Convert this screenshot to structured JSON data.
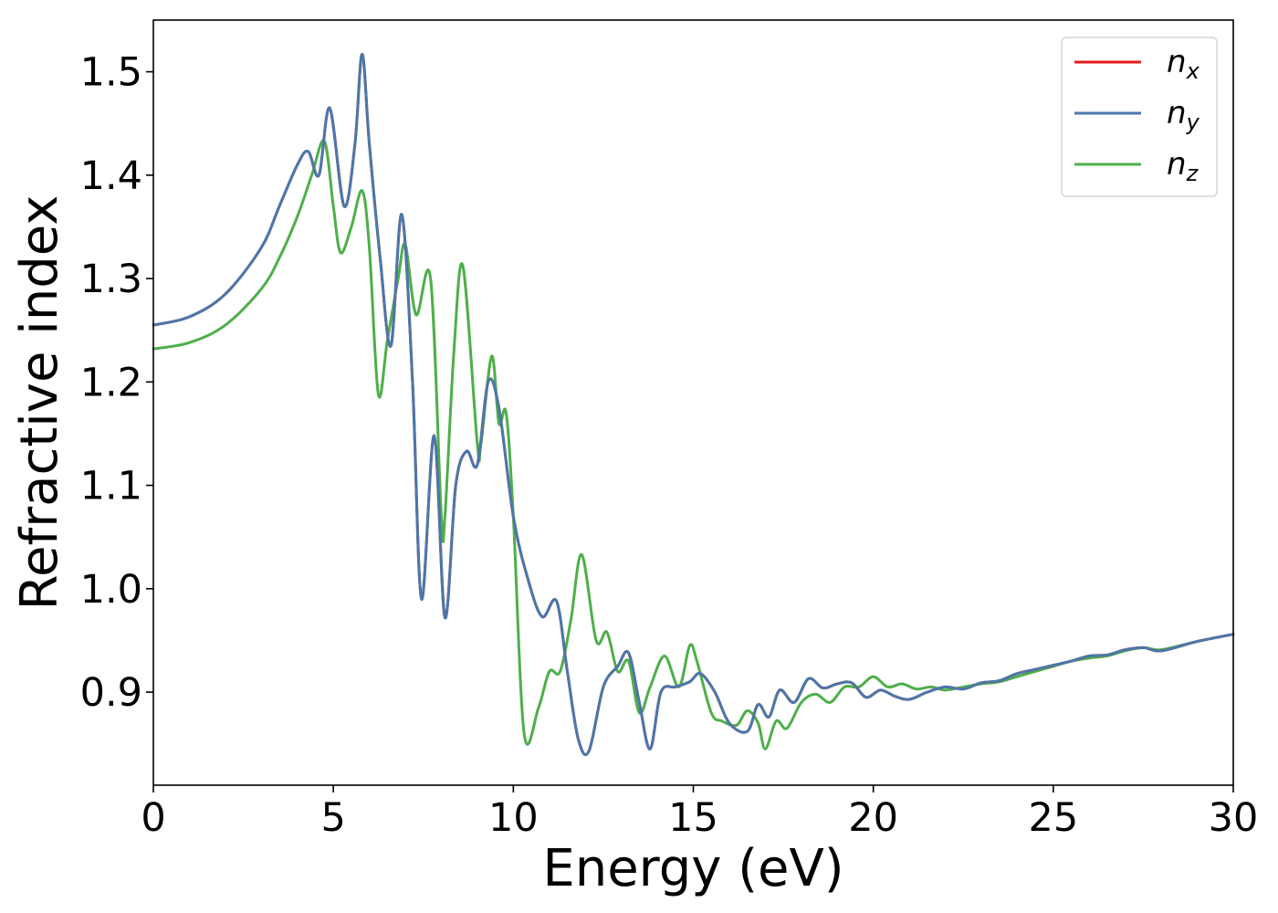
{
  "chart_data": {
    "type": "line",
    "title": "",
    "xlabel": "Energy (eV)",
    "ylabel": "Refractive index",
    "xlim": [
      0,
      30
    ],
    "ylim": [
      0.81,
      1.55
    ],
    "xticks": [
      0,
      5,
      10,
      15,
      20,
      25,
      30
    ],
    "xtick_labels": [
      "0",
      "5",
      "10",
      "15",
      "20",
      "25",
      "30"
    ],
    "yticks": [
      0.9,
      1.0,
      1.1,
      1.2,
      1.3,
      1.4,
      1.5
    ],
    "ytick_labels": [
      "0.9",
      "1.0",
      "1.1",
      "1.2",
      "1.3",
      "1.4",
      "1.5"
    ],
    "grid": false,
    "legend_position": "top-right",
    "series": [
      {
        "name": "n_x",
        "label_base": "n",
        "label_sub": "x",
        "color": "#e41a1c",
        "x": [
          0,
          1,
          2,
          3,
          3.5,
          4,
          4.3,
          4.6,
          4.9,
          5.3,
          5.6,
          5.8,
          6.0,
          6.3,
          6.6,
          6.9,
          7.2,
          7.45,
          7.8,
          8.1,
          8.4,
          8.7,
          9.0,
          9.3,
          9.6,
          10.0,
          10.4,
          10.8,
          11.2,
          11.5,
          11.8,
          12.1,
          12.5,
          12.9,
          13.2,
          13.5,
          13.8,
          14.1,
          14.5,
          14.9,
          15.2,
          15.6,
          16.0,
          16.5,
          16.8,
          17.1,
          17.4,
          17.8,
          18.2,
          18.6,
          19.0,
          19.4,
          19.8,
          20.2,
          20.6,
          21.0,
          21.5,
          22.0,
          22.5,
          23.0,
          23.5,
          24.0,
          24.5,
          25.0,
          25.5,
          26.0,
          26.5,
          27.0,
          27.5,
          28.0,
          29.0,
          30.0
        ],
        "y": [
          1.255,
          1.263,
          1.285,
          1.33,
          1.37,
          1.41,
          1.423,
          1.4,
          1.465,
          1.37,
          1.43,
          1.517,
          1.43,
          1.32,
          1.235,
          1.362,
          1.2,
          0.99,
          1.148,
          0.972,
          1.1,
          1.133,
          1.12,
          1.2,
          1.175,
          1.07,
          1.01,
          0.973,
          0.988,
          0.92,
          0.855,
          0.843,
          0.905,
          0.925,
          0.938,
          0.89,
          0.845,
          0.9,
          0.905,
          0.91,
          0.918,
          0.9,
          0.87,
          0.862,
          0.888,
          0.876,
          0.902,
          0.89,
          0.913,
          0.904,
          0.908,
          0.909,
          0.895,
          0.902,
          0.896,
          0.893,
          0.9,
          0.905,
          0.903,
          0.909,
          0.911,
          0.918,
          0.922,
          0.926,
          0.93,
          0.935,
          0.936,
          0.941,
          0.943,
          0.94,
          0.949,
          0.956
        ]
      },
      {
        "name": "n_y",
        "label_base": "n",
        "label_sub": "y",
        "color": "#4a78aa",
        "x": [
          0,
          1,
          2,
          3,
          3.5,
          4,
          4.3,
          4.6,
          4.9,
          5.3,
          5.6,
          5.8,
          6.0,
          6.3,
          6.6,
          6.9,
          7.2,
          7.45,
          7.8,
          8.1,
          8.4,
          8.7,
          9.0,
          9.3,
          9.6,
          10.0,
          10.4,
          10.8,
          11.2,
          11.5,
          11.8,
          12.1,
          12.5,
          12.9,
          13.2,
          13.5,
          13.8,
          14.1,
          14.5,
          14.9,
          15.2,
          15.6,
          16.0,
          16.5,
          16.8,
          17.1,
          17.4,
          17.8,
          18.2,
          18.6,
          19.0,
          19.4,
          19.8,
          20.2,
          20.6,
          21.0,
          21.5,
          22.0,
          22.5,
          23.0,
          23.5,
          24.0,
          24.5,
          25.0,
          25.5,
          26.0,
          26.5,
          27.0,
          27.5,
          28.0,
          29.0,
          30.0
        ],
        "y": [
          1.255,
          1.263,
          1.285,
          1.33,
          1.37,
          1.41,
          1.423,
          1.4,
          1.465,
          1.37,
          1.43,
          1.517,
          1.43,
          1.32,
          1.235,
          1.362,
          1.2,
          0.99,
          1.148,
          0.972,
          1.1,
          1.133,
          1.12,
          1.2,
          1.175,
          1.07,
          1.01,
          0.973,
          0.988,
          0.92,
          0.855,
          0.843,
          0.905,
          0.925,
          0.938,
          0.89,
          0.845,
          0.9,
          0.905,
          0.91,
          0.918,
          0.9,
          0.87,
          0.862,
          0.888,
          0.876,
          0.902,
          0.89,
          0.913,
          0.904,
          0.908,
          0.909,
          0.895,
          0.902,
          0.896,
          0.893,
          0.9,
          0.905,
          0.903,
          0.909,
          0.911,
          0.918,
          0.922,
          0.926,
          0.93,
          0.935,
          0.936,
          0.941,
          0.943,
          0.94,
          0.949,
          0.956
        ]
      },
      {
        "name": "n_z",
        "label_base": "n",
        "label_sub": "z",
        "color": "#4daf4a",
        "x": [
          0,
          1,
          2,
          3,
          3.5,
          4,
          4.4,
          4.75,
          5.0,
          5.2,
          5.5,
          5.8,
          6.0,
          6.25,
          6.5,
          6.8,
          7.0,
          7.3,
          7.7,
          8.0,
          8.1,
          8.35,
          8.6,
          9.0,
          9.1,
          9.4,
          9.6,
          9.8,
          10.0,
          10.3,
          10.7,
          11.0,
          11.3,
          11.6,
          11.9,
          12.3,
          12.6,
          12.9,
          13.2,
          13.5,
          13.8,
          14.2,
          14.6,
          14.9,
          15.1,
          15.5,
          15.8,
          16.2,
          16.5,
          16.8,
          17.0,
          17.3,
          17.6,
          18.0,
          18.4,
          18.8,
          19.2,
          19.6,
          20.0,
          20.4,
          20.8,
          21.2,
          21.6,
          22.0,
          22.5,
          23.0,
          23.5,
          24.0,
          24.5,
          25.0,
          25.5,
          26.0,
          26.5,
          27.0,
          27.5,
          28.0,
          29.0,
          30.0
        ],
        "y": [
          1.232,
          1.238,
          1.255,
          1.29,
          1.32,
          1.36,
          1.4,
          1.433,
          1.37,
          1.325,
          1.35,
          1.385,
          1.33,
          1.188,
          1.24,
          1.3,
          1.333,
          1.265,
          1.3,
          1.07,
          1.07,
          1.23,
          1.312,
          1.14,
          1.14,
          1.225,
          1.16,
          1.17,
          1.07,
          0.86,
          0.885,
          0.92,
          0.92,
          0.97,
          1.033,
          0.95,
          0.958,
          0.92,
          0.93,
          0.88,
          0.905,
          0.935,
          0.905,
          0.945,
          0.93,
          0.88,
          0.872,
          0.868,
          0.882,
          0.87,
          0.845,
          0.872,
          0.865,
          0.89,
          0.898,
          0.89,
          0.905,
          0.905,
          0.915,
          0.905,
          0.908,
          0.903,
          0.905,
          0.902,
          0.905,
          0.908,
          0.91,
          0.915,
          0.92,
          0.925,
          0.93,
          0.933,
          0.935,
          0.94,
          0.943,
          0.941,
          0.949,
          0.956
        ]
      }
    ]
  }
}
